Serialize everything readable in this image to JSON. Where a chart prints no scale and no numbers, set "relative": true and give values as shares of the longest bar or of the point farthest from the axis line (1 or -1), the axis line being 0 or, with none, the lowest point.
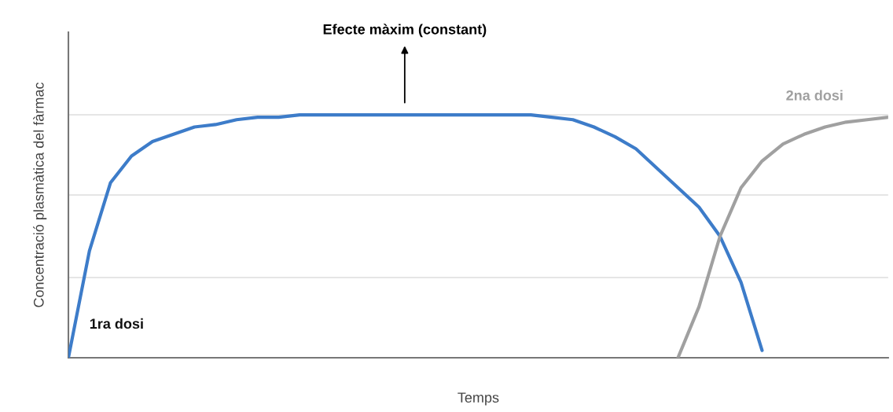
{
  "chart_data": {
    "type": "line",
    "relative": true,
    "xlabel": "Temps",
    "ylabel": "Concentració plasmàtica del fàrmac",
    "annotations": [
      "Efecte màxim (constant)"
    ],
    "ref_lines": [
      {
        "axis": "y",
        "value": 0.33,
        "color": "#dddddd"
      },
      {
        "axis": "y",
        "value": 0.67,
        "color": "#dddddd"
      },
      {
        "axis": "y",
        "value": 1,
        "color": "#dddddd"
      }
    ],
    "marker": "none",
    "line_style": "solid",
    "categories": [
      null,
      null,
      null,
      null,
      null,
      null,
      null,
      null,
      null,
      null,
      null,
      null,
      null,
      null,
      null,
      null,
      null,
      null,
      null,
      null,
      null,
      null,
      null,
      null,
      null,
      null,
      null,
      null,
      null,
      null,
      null,
      null,
      null,
      null,
      null,
      null,
      null,
      null,
      null,
      null
    ],
    "series": [
      {
        "name": "1ra dosi",
        "color": "#3d7cc9",
        "values": [
          0,
          0.44,
          0.72,
          0.83,
          0.89,
          0.92,
          0.95,
          0.96,
          0.98,
          0.99,
          0.99,
          1,
          1,
          1,
          1,
          1,
          1,
          1,
          1,
          1,
          1,
          1,
          1,
          0.99,
          0.98,
          0.95,
          0.91,
          0.86,
          0.78,
          0.7,
          0.62,
          0.5,
          0.31,
          0.03,
          null,
          null,
          null,
          null,
          null,
          null
        ]
      },
      {
        "name": "2na dosi",
        "color": "#a0a0a0",
        "values": [
          null,
          null,
          null,
          null,
          null,
          null,
          null,
          null,
          null,
          null,
          null,
          null,
          null,
          null,
          null,
          null,
          null,
          null,
          null,
          null,
          null,
          null,
          null,
          null,
          null,
          null,
          null,
          null,
          null,
          0,
          0.21,
          0.5,
          0.7,
          0.81,
          0.88,
          0.92,
          0.95,
          0.97,
          0.98,
          0.99
        ]
      }
    ]
  }
}
